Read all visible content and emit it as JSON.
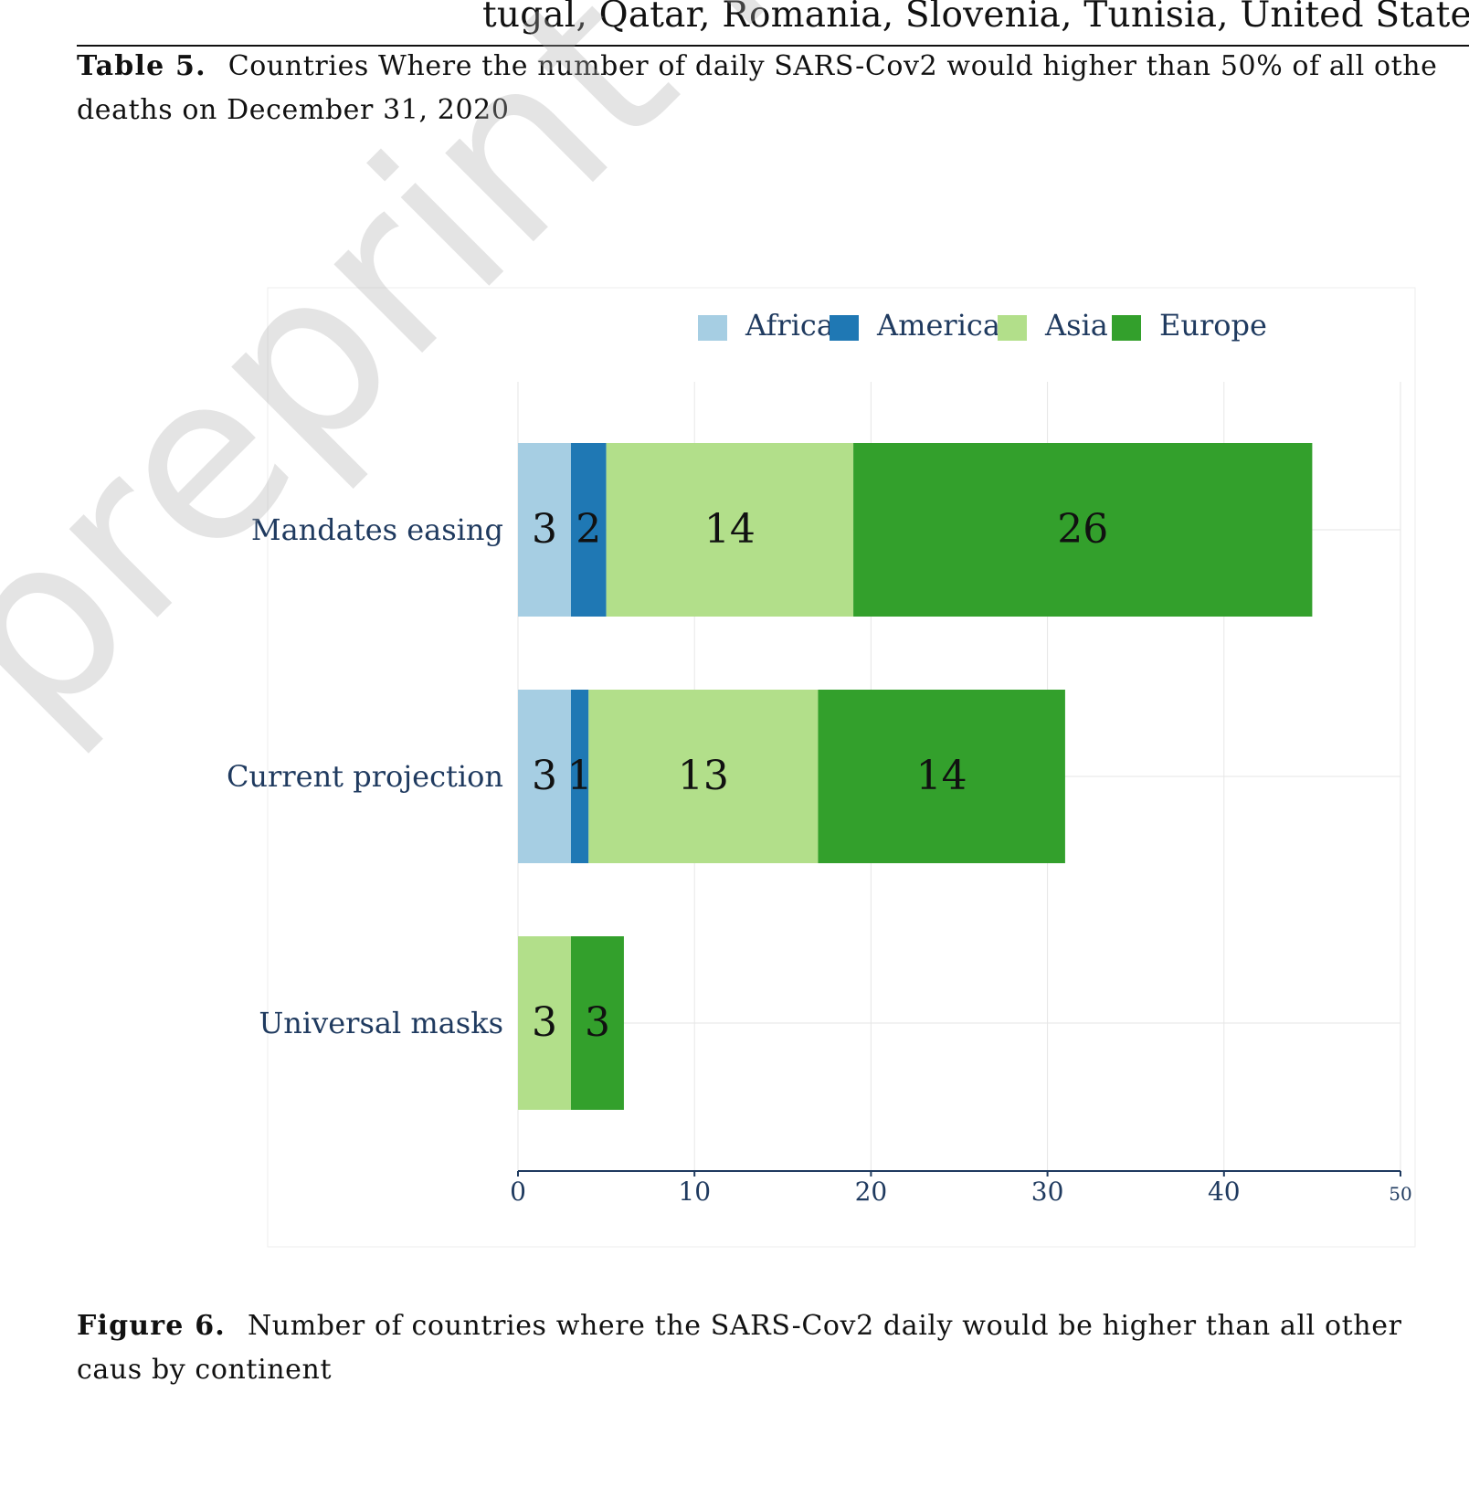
{
  "page": {
    "top_line": "tugal, Qatar, Romania, Slovenia, Tunisia, United State",
    "table_caption_lead": "Table 5.",
    "table_caption_text": "Countries Where the number of daily SARS-Cov2 would higher than 50% of all othe deaths on December 31, 2020",
    "figure_caption_lead": "Figure 6.",
    "figure_caption_text": "Number of countries where the SARS-Cov2 daily would be higher than all other caus by continent",
    "watermark": "preprint not pee"
  },
  "chart_data": {
    "type": "bar",
    "orientation": "horizontal",
    "stacked": true,
    "categories": [
      "Mandates easing",
      "Current projection",
      "Universal masks"
    ],
    "series": [
      {
        "name": "Africa",
        "color": "#a6cee3",
        "values": [
          3,
          3,
          0
        ]
      },
      {
        "name": "Americas",
        "color": "#1f78b4",
        "values": [
          2,
          1,
          0
        ]
      },
      {
        "name": "Asia",
        "color": "#b2df8a",
        "values": [
          14,
          13,
          3
        ]
      },
      {
        "name": "Europe",
        "color": "#33a02c",
        "values": [
          26,
          14,
          3
        ]
      }
    ],
    "xlim": [
      0,
      50
    ],
    "xticks": [
      "0",
      "10",
      "20",
      "30",
      "40",
      "50"
    ],
    "grid": true,
    "legend_position": "top",
    "data_labels": true,
    "text_color": "#1f3a5f"
  }
}
